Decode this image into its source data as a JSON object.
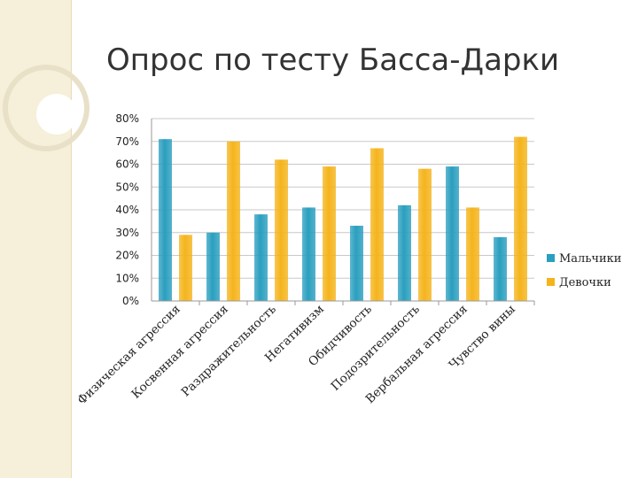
{
  "slide": {
    "title": "Опрос по тесту Басса-Дарки"
  },
  "decor": {
    "circle_icon": "ring-circle-decoration",
    "circle_color": "#e9e0c8"
  },
  "chart_data": {
    "type": "bar",
    "title": "",
    "xlabel": "",
    "ylabel": "",
    "categories": [
      "Физическая агрессия",
      "Косвенная агрессия",
      "Раздражительность",
      "Негативизм",
      "Обидчивость",
      "Подозрительность",
      "Вербальная агрессия",
      "Чувство вины"
    ],
    "series": [
      {
        "name": "Мальчики",
        "color": "#2a9fbf",
        "values": [
          71,
          30,
          38,
          41,
          33,
          42,
          59,
          28
        ]
      },
      {
        "name": "Девочки",
        "color": "#f5b41c",
        "values": [
          29,
          70,
          62,
          59,
          67,
          58,
          41,
          72
        ]
      }
    ],
    "ylim": [
      0,
      80
    ],
    "yticks": [
      "0%",
      "10%",
      "20%",
      "30%",
      "40%",
      "50%",
      "60%",
      "70%",
      "80%"
    ],
    "grid": true,
    "legend_position": "right"
  }
}
